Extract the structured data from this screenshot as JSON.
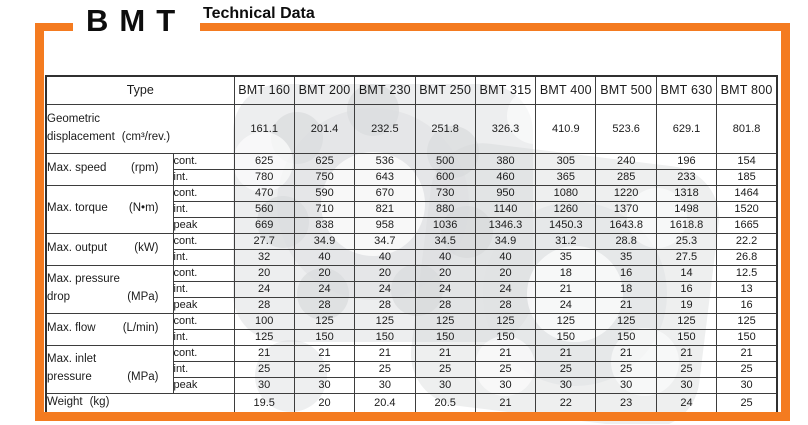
{
  "page": {
    "logo": "BMT",
    "title": "Technical Data"
  },
  "colors": {
    "accent_orange": "#F47B20",
    "grid_line": "#3d3d3d",
    "text": "#1b1b1b",
    "watermark_gray": "#a7acb0"
  },
  "chart_data": {
    "type": "table",
    "title": "Technical Data",
    "categories": [
      "BMT 160",
      "BMT 200",
      "BMT 230",
      "BMT 250",
      "BMT 315",
      "BMT 400",
      "BMT 500",
      "BMT 630",
      "BMT 800"
    ]
  },
  "table": {
    "type_label": "Type",
    "columns": [
      "BMT 160",
      "BMT 200",
      "BMT 230",
      "BMT 250",
      "BMT 315",
      "BMT 400",
      "BMT 500",
      "BMT 630",
      "BMT 800"
    ],
    "sections": [
      {
        "id": "geometric-displacement",
        "line1": "Geometric",
        "line2": "displacement",
        "unit": "(cm³/rev.)",
        "unit_style": "inline",
        "span_sub": true,
        "row_class": "geo",
        "rows": [
          {
            "sub": null,
            "values": [
              "161.1",
              "201.4",
              "232.5",
              "251.8",
              "326.3",
              "410.9",
              "523.6",
              "629.1",
              "801.8"
            ]
          }
        ]
      },
      {
        "id": "max-speed",
        "line1": null,
        "line2": "Max. speed",
        "unit": "(rpm)",
        "unit_style": "right",
        "span_sub": false,
        "row_class": "std",
        "rows": [
          {
            "sub": "cont.",
            "values": [
              "625",
              "625",
              "536",
              "500",
              "380",
              "305",
              "240",
              "196",
              "154"
            ]
          },
          {
            "sub": "int.",
            "values": [
              "780",
              "750",
              "643",
              "600",
              "460",
              "365",
              "285",
              "233",
              "185"
            ]
          }
        ]
      },
      {
        "id": "max-torque",
        "line1": null,
        "line2": "Max. torque",
        "unit": "(N•m)",
        "unit_style": "right",
        "span_sub": false,
        "row_class": "std",
        "rows": [
          {
            "sub": "cont.",
            "values": [
              "470",
              "590",
              "670",
              "730",
              "950",
              "1080",
              "1220",
              "1318",
              "1464"
            ]
          },
          {
            "sub": "int.",
            "values": [
              "560",
              "710",
              "821",
              "880",
              "1140",
              "1260",
              "1370",
              "1498",
              "1520"
            ]
          },
          {
            "sub": "peak",
            "values": [
              "669",
              "838",
              "958",
              "1036",
              "1346.3",
              "1450.3",
              "1643.8",
              "1618.8",
              "1665"
            ]
          }
        ]
      },
      {
        "id": "max-output",
        "line1": null,
        "line2": "Max. output",
        "unit": "(kW)",
        "unit_style": "right",
        "span_sub": false,
        "row_class": "std",
        "rows": [
          {
            "sub": "cont.",
            "values": [
              "27.7",
              "34.9",
              "34.7",
              "34.5",
              "34.9",
              "31.2",
              "28.8",
              "25.3",
              "22.2"
            ]
          },
          {
            "sub": "int.",
            "values": [
              "32",
              "40",
              "40",
              "40",
              "40",
              "35",
              "35",
              "27.5",
              "26.8"
            ]
          }
        ]
      },
      {
        "id": "max-pressure-drop",
        "line1": "Max. pressure",
        "line2": "drop",
        "unit": "(MPa)",
        "unit_style": "right",
        "span_sub": false,
        "row_class": "std",
        "rows": [
          {
            "sub": "cont.",
            "values": [
              "20",
              "20",
              "20",
              "20",
              "20",
              "18",
              "16",
              "14",
              "12.5"
            ]
          },
          {
            "sub": "int.",
            "values": [
              "24",
              "24",
              "24",
              "24",
              "24",
              "21",
              "18",
              "16",
              "13"
            ]
          },
          {
            "sub": "peak",
            "values": [
              "28",
              "28",
              "28",
              "28",
              "28",
              "24",
              "21",
              "19",
              "16"
            ]
          }
        ]
      },
      {
        "id": "max-flow",
        "line1": null,
        "line2": "Max. flow",
        "unit": "(L/min)",
        "unit_style": "right",
        "span_sub": false,
        "row_class": "std",
        "rows": [
          {
            "sub": "cont.",
            "values": [
              "100",
              "125",
              "125",
              "125",
              "125",
              "125",
              "125",
              "125",
              "125"
            ]
          },
          {
            "sub": "int.",
            "values": [
              "125",
              "150",
              "150",
              "150",
              "150",
              "150",
              "150",
              "150",
              "150"
            ]
          }
        ]
      },
      {
        "id": "max-inlet-pressure",
        "line1": "Max. inlet",
        "line2": "pressure",
        "unit": "(MPa)",
        "unit_style": "right",
        "span_sub": false,
        "row_class": "std",
        "rows": [
          {
            "sub": "cont.",
            "values": [
              "21",
              "21",
              "21",
              "21",
              "21",
              "21",
              "21",
              "21",
              "21"
            ]
          },
          {
            "sub": "int.",
            "values": [
              "25",
              "25",
              "25",
              "25",
              "25",
              "25",
              "25",
              "25",
              "25"
            ]
          },
          {
            "sub": "peak",
            "values": [
              "30",
              "30",
              "30",
              "30",
              "30",
              "30",
              "30",
              "30",
              "30"
            ]
          }
        ]
      },
      {
        "id": "weight",
        "line1": null,
        "line2": "Weight",
        "unit": "(kg)",
        "unit_style": "inline",
        "span_sub": true,
        "row_class": "wgt",
        "rows": [
          {
            "sub": null,
            "values": [
              "19.5",
              "20",
              "20.4",
              "20.5",
              "21",
              "22",
              "23",
              "24",
              "25"
            ]
          }
        ]
      }
    ]
  }
}
